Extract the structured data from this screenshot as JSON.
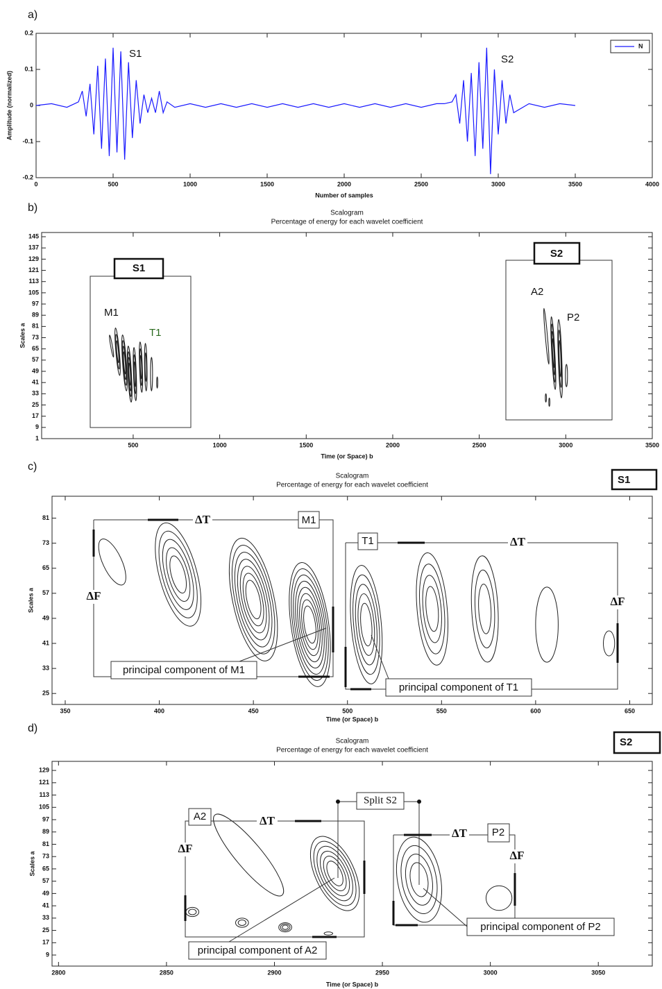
{
  "chart_data": [
    {
      "type": "line",
      "label": "a)",
      "xlabel": "Number of samples",
      "ylabel": "Amplitude (normalized)",
      "xlim": [
        0,
        4000
      ],
      "ylim": [
        -0.2,
        0.2
      ],
      "xticks": [
        0,
        500,
        1000,
        1500,
        2000,
        2500,
        3000,
        3500,
        4000
      ],
      "yticks": [
        -0.2,
        -0.1,
        0,
        0.1,
        0.2
      ],
      "annotations": [
        "S1",
        "S2"
      ],
      "x": [
        0,
        100,
        200,
        250,
        275,
        300,
        325,
        350,
        375,
        400,
        425,
        450,
        475,
        500,
        525,
        550,
        575,
        600,
        625,
        650,
        675,
        700,
        725,
        750,
        775,
        800,
        825,
        850,
        900,
        1000,
        1100,
        1200,
        1300,
        1400,
        1500,
        1600,
        1700,
        1800,
        1900,
        2000,
        2100,
        2200,
        2300,
        2400,
        2500,
        2600,
        2650,
        2700,
        2725,
        2750,
        2775,
        2800,
        2825,
        2850,
        2875,
        2900,
        2925,
        2950,
        2975,
        3000,
        3025,
        3050,
        3075,
        3100,
        3200,
        3300,
        3400,
        3500
      ],
      "series": [
        {
          "name": "N",
          "color": "#1a1aff",
          "values": [
            0,
            0.005,
            -0.005,
            0.005,
            0.01,
            0.04,
            -0.03,
            0.06,
            -0.08,
            0.11,
            -0.12,
            0.13,
            -0.14,
            0.16,
            -0.13,
            0.15,
            -0.15,
            0.12,
            -0.09,
            0.07,
            -0.05,
            0.03,
            -0.02,
            0.02,
            -0.02,
            0.04,
            -0.02,
            0.01,
            -0.005,
            0.005,
            -0.005,
            0.005,
            -0.005,
            0.005,
            -0.005,
            0.005,
            -0.005,
            0.005,
            -0.005,
            0.005,
            -0.005,
            0.005,
            -0.005,
            0.005,
            -0.005,
            0.005,
            0.005,
            0.01,
            0.03,
            -0.05,
            0.07,
            -0.1,
            0.09,
            -0.14,
            0.12,
            -0.12,
            0.16,
            -0.19,
            0.1,
            -0.08,
            0.07,
            -0.05,
            0.03,
            -0.02,
            0.005,
            -0.005,
            0.005,
            0
          ]
        }
      ]
    },
    {
      "type": "contour",
      "label": "b)",
      "title": "Scalogram",
      "subtitle": "Percentage of energy for each wavelet coefficient",
      "xlabel": "Time (or Space) b",
      "ylabel": "Scales a",
      "xlim": [
        -29,
        3500
      ],
      "ylim": [
        1,
        148
      ],
      "xticks": [
        500,
        1000,
        1500,
        2000,
        2500,
        3000,
        3500
      ],
      "yticks": [
        1,
        9,
        17,
        25,
        33,
        41,
        49,
        57,
        65,
        73,
        81,
        89,
        97,
        105,
        113,
        121,
        129,
        137,
        145
      ],
      "annotations": [
        "S1",
        "S2",
        "M1",
        "T1",
        "A2",
        "P2"
      ],
      "contours": [
        {
          "x": 375,
          "y": 67,
          "rx": 5,
          "ry": 8,
          "tilt": -10,
          "rings": 1
        },
        {
          "x": 410,
          "y": 63,
          "rx": 10,
          "ry": 17,
          "tilt": -5,
          "rings": 3
        },
        {
          "x": 450,
          "y": 55,
          "rx": 11,
          "ry": 20,
          "tilt": -4,
          "rings": 4
        },
        {
          "x": 480,
          "y": 47,
          "rx": 10,
          "ry": 20,
          "tilt": -3,
          "rings": 4
        },
        {
          "x": 510,
          "y": 47,
          "rx": 8,
          "ry": 19,
          "tilt": -2,
          "rings": 3
        },
        {
          "x": 545,
          "y": 52,
          "rx": 8,
          "ry": 18,
          "tilt": -2,
          "rings": 3
        },
        {
          "x": 573,
          "y": 52,
          "rx": 7,
          "ry": 17,
          "tilt": -1,
          "rings": 2
        },
        {
          "x": 606,
          "y": 47,
          "rx": 6,
          "ry": 12,
          "tilt": 0,
          "rings": 1
        },
        {
          "x": 639,
          "y": 41,
          "rx": 3,
          "ry": 4,
          "tilt": 0,
          "rings": 1
        },
        {
          "x": 2888,
          "y": 74,
          "rx": 6,
          "ry": 20,
          "tilt": -5,
          "rings": 1
        },
        {
          "x": 2928,
          "y": 62,
          "rx": 9,
          "ry": 26,
          "tilt": -3,
          "rings": 4
        },
        {
          "x": 2967,
          "y": 58,
          "rx": 10,
          "ry": 28,
          "tilt": -2,
          "rings": 3
        },
        {
          "x": 3004,
          "y": 46,
          "rx": 6,
          "ry": 8,
          "tilt": 0,
          "rings": 1
        },
        {
          "x": 2885,
          "y": 30,
          "rx": 3,
          "ry": 3,
          "tilt": 0,
          "rings": 1
        },
        {
          "x": 2905,
          "y": 27,
          "rx": 3,
          "ry": 3,
          "tilt": 0,
          "rings": 1
        }
      ]
    },
    {
      "type": "contour",
      "label": "c)",
      "title": "Scalogram",
      "subtitle": "Percentage of energy for each wavelet coefficient",
      "xlabel": "Time (or Space) b",
      "ylabel": "Scales a",
      "xlim": [
        343,
        662
      ],
      "ylim": [
        21.5,
        88
      ],
      "xticks": [
        350,
        400,
        450,
        500,
        550,
        600,
        650
      ],
      "yticks": [
        25,
        33,
        41,
        49,
        57,
        65,
        73,
        81
      ],
      "annotations": [
        "S1",
        "ΔT",
        "M1",
        "ΔF",
        "principal component of M1",
        "T1",
        "ΔT",
        "ΔF",
        "principal component of T1"
      ],
      "contours": [
        {
          "x": 375,
          "y": 67,
          "rx": 5,
          "ry": 8,
          "tilt": -25,
          "rings": 1
        },
        {
          "x": 410,
          "y": 63,
          "rx": 10,
          "ry": 17,
          "tilt": -15,
          "rings": 5
        },
        {
          "x": 450,
          "y": 55,
          "rx": 11,
          "ry": 20,
          "tilt": -12,
          "rings": 7
        },
        {
          "x": 480,
          "y": 47,
          "rx": 10,
          "ry": 20,
          "tilt": -8,
          "rings": 8
        },
        {
          "x": 510,
          "y": 47,
          "rx": 8,
          "ry": 19,
          "tilt": -5,
          "rings": 5
        },
        {
          "x": 545,
          "y": 52,
          "rx": 8,
          "ry": 18,
          "tilt": -5,
          "rings": 4
        },
        {
          "x": 573,
          "y": 52,
          "rx": 7,
          "ry": 17,
          "tilt": -3,
          "rings": 3
        },
        {
          "x": 606,
          "y": 47,
          "rx": 6,
          "ry": 12,
          "tilt": 0,
          "rings": 1
        },
        {
          "x": 639,
          "y": 41,
          "rx": 3,
          "ry": 4,
          "tilt": 0,
          "rings": 1
        }
      ]
    },
    {
      "type": "contour",
      "label": "d)",
      "title": "Scalogram",
      "subtitle": "Percentage of energy for each wavelet coefficient",
      "xlabel": "Time (or Space) b",
      "ylabel": "Scales a",
      "xlim": [
        2797,
        3075
      ],
      "ylim": [
        1.8,
        134.9
      ],
      "xticks": [
        2800,
        2850,
        2900,
        2950,
        3000,
        3050
      ],
      "yticks": [
        9,
        17,
        25,
        33,
        41,
        49,
        57,
        65,
        73,
        81,
        89,
        97,
        105,
        113,
        121,
        129
      ],
      "annotations": [
        "S2",
        "A2",
        "ΔT",
        "ΔF",
        "Split S2",
        "P2",
        "ΔT",
        "ΔF",
        "principal component of A2",
        "principal component of P2"
      ],
      "contours": [
        {
          "x": 2862,
          "y": 37,
          "rx": 3,
          "ry": 3,
          "tilt": 0,
          "rings": 2
        },
        {
          "x": 2885,
          "y": 30,
          "rx": 3,
          "ry": 3,
          "tilt": 0,
          "rings": 2
        },
        {
          "x": 2905,
          "y": 27,
          "rx": 3,
          "ry": 3,
          "tilt": 0,
          "rings": 3
        },
        {
          "x": 2888,
          "y": 74,
          "rx": 6,
          "ry": 34,
          "tilt": -40,
          "rings": 1
        },
        {
          "x": 2928,
          "y": 62,
          "rx": 9,
          "ry": 26,
          "tilt": -25,
          "rings": 6
        },
        {
          "x": 2925,
          "y": 23,
          "rx": 2,
          "ry": 1,
          "tilt": 0,
          "rings": 1
        },
        {
          "x": 2967,
          "y": 58,
          "rx": 10,
          "ry": 28,
          "tilt": -10,
          "rings": 4
        },
        {
          "x": 3004,
          "y": 46,
          "rx": 6,
          "ry": 8,
          "tilt": 0,
          "rings": 1
        }
      ]
    }
  ]
}
